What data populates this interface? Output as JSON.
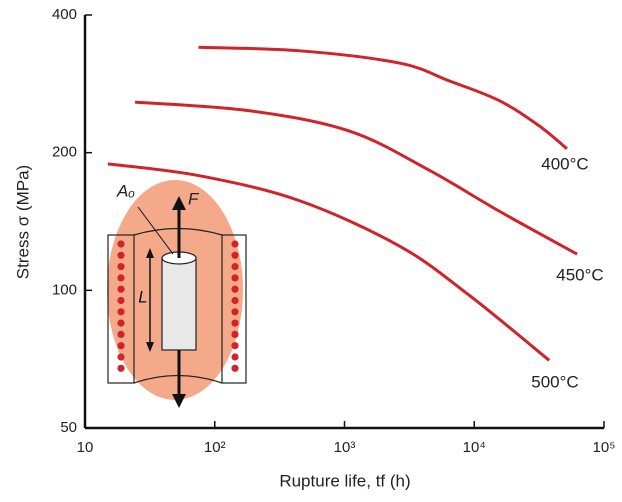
{
  "chart_data": {
    "type": "line",
    "x_label": "Rupture life, tf (h)",
    "y_label": "Stress σ (MPa)",
    "log_x": true,
    "log_y": true,
    "xlim": [
      10,
      100000
    ],
    "xticks": [
      10,
      {
        "value": 100,
        "label": "10²"
      },
      {
        "value": 1000,
        "label": "10³"
      },
      {
        "value": 10000,
        "label": "10⁴"
      },
      {
        "value": 100000,
        "label": "10⁵"
      }
    ],
    "ylim": [
      50,
      400
    ],
    "yticks": [
      50,
      100,
      200,
      400
    ],
    "annotations": [
      "Aₒ",
      "F",
      "L"
    ],
    "series": [
      {
        "name": "400°C",
        "color": "#d0232a",
        "x": [
          75,
          451,
          2650,
          6430,
          15560,
          31600,
          51800
        ],
        "values": [
          340,
          334,
          314,
          287,
          260,
          229,
          204
        ]
      },
      {
        "name": "450°C",
        "color": "#d0232a",
        "x": [
          24.3,
          186,
          1090,
          4510,
          15560,
          62000
        ],
        "values": [
          258,
          247,
          223,
          183,
          149,
          120
        ]
      },
      {
        "name": "500°C",
        "color": "#d0232a",
        "x": [
          15,
          76.7,
          451,
          2650,
          9160,
          37800
        ],
        "values": [
          189,
          178,
          157,
          125,
          97.5,
          70.3
        ]
      }
    ]
  }
}
